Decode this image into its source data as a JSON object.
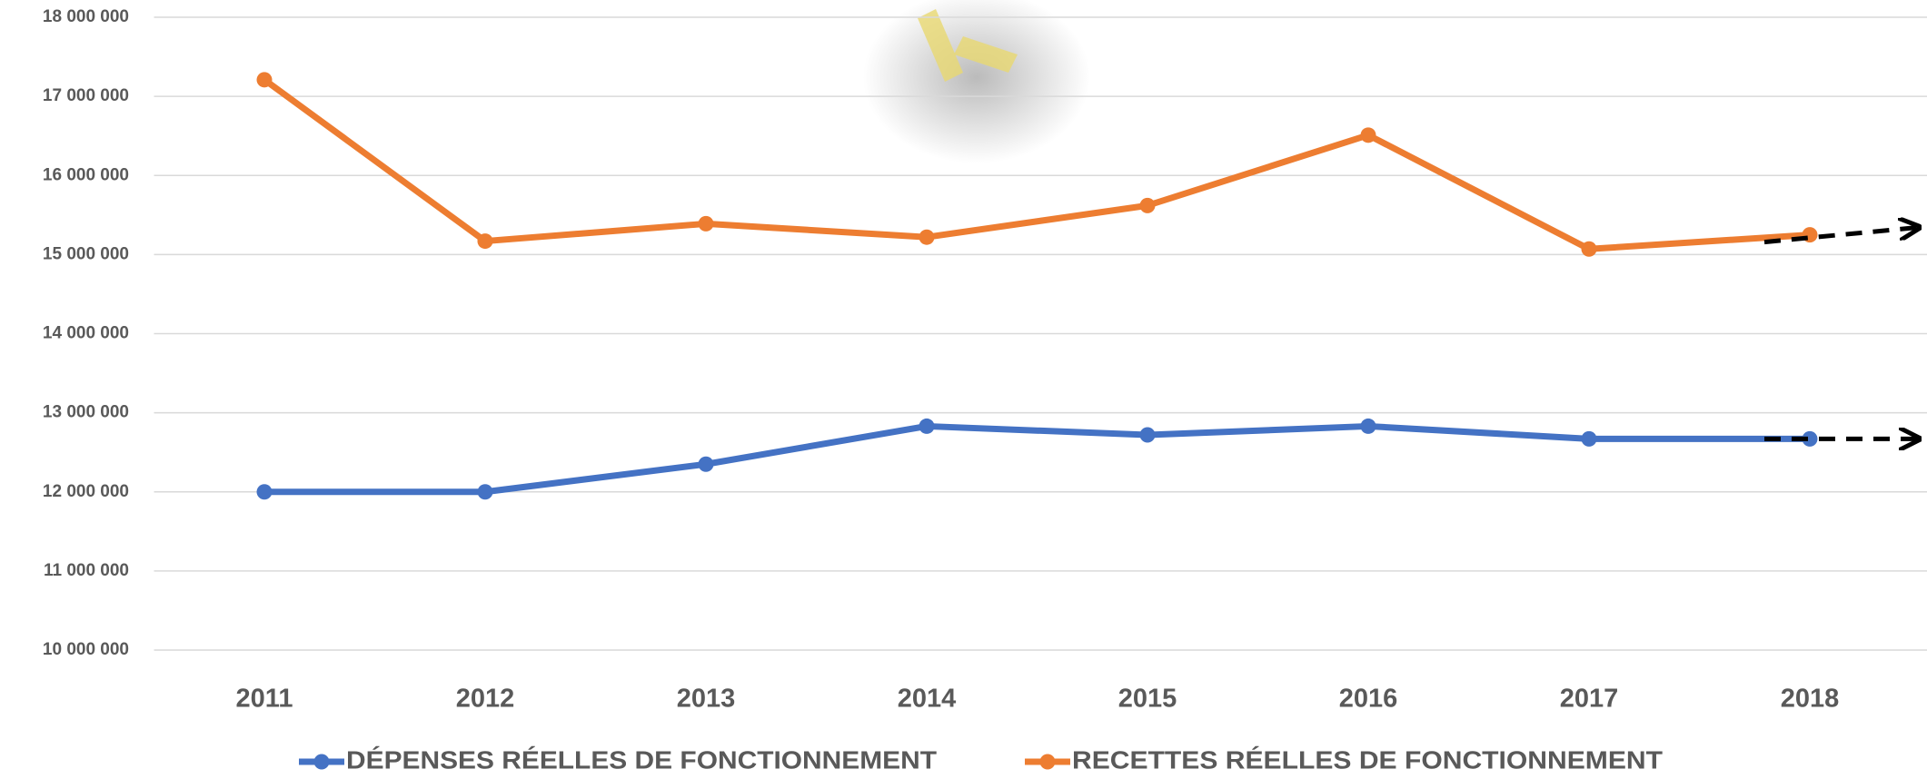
{
  "chart_data": {
    "type": "line",
    "categories": [
      "2011",
      "2012",
      "2013",
      "2014",
      "2015",
      "2016",
      "2017",
      "2018"
    ],
    "series": [
      {
        "name": "DÉPENSES RÉELLES DE FONCTIONNEMENT",
        "color": "#4472c4",
        "values": [
          12000000,
          12000000,
          12350000,
          12830000,
          12720000,
          12830000,
          12670000,
          12670000
        ]
      },
      {
        "name": "RECETTES RÉELLES DE FONCTIONNEMENT",
        "color": "#ed7d31",
        "values": [
          17210000,
          15170000,
          15390000,
          15220000,
          15620000,
          16510000,
          15070000,
          15250000
        ]
      }
    ],
    "ylim": [
      10000000,
      18000000
    ],
    "yticks": [
      {
        "value": 10000000,
        "label": "10 000 000"
      },
      {
        "value": 11000000,
        "label": "11 000 000"
      },
      {
        "value": 12000000,
        "label": "12 000 000"
      },
      {
        "value": 13000000,
        "label": "13 000 000"
      },
      {
        "value": 14000000,
        "label": "14 000 000"
      },
      {
        "value": 15000000,
        "label": "15 000 000"
      },
      {
        "value": 16000000,
        "label": "16 000 000"
      },
      {
        "value": 17000000,
        "label": "17 000 000"
      },
      {
        "value": 18000000,
        "label": "18 000 000"
      }
    ],
    "grid": true,
    "legend": "bottom"
  }
}
